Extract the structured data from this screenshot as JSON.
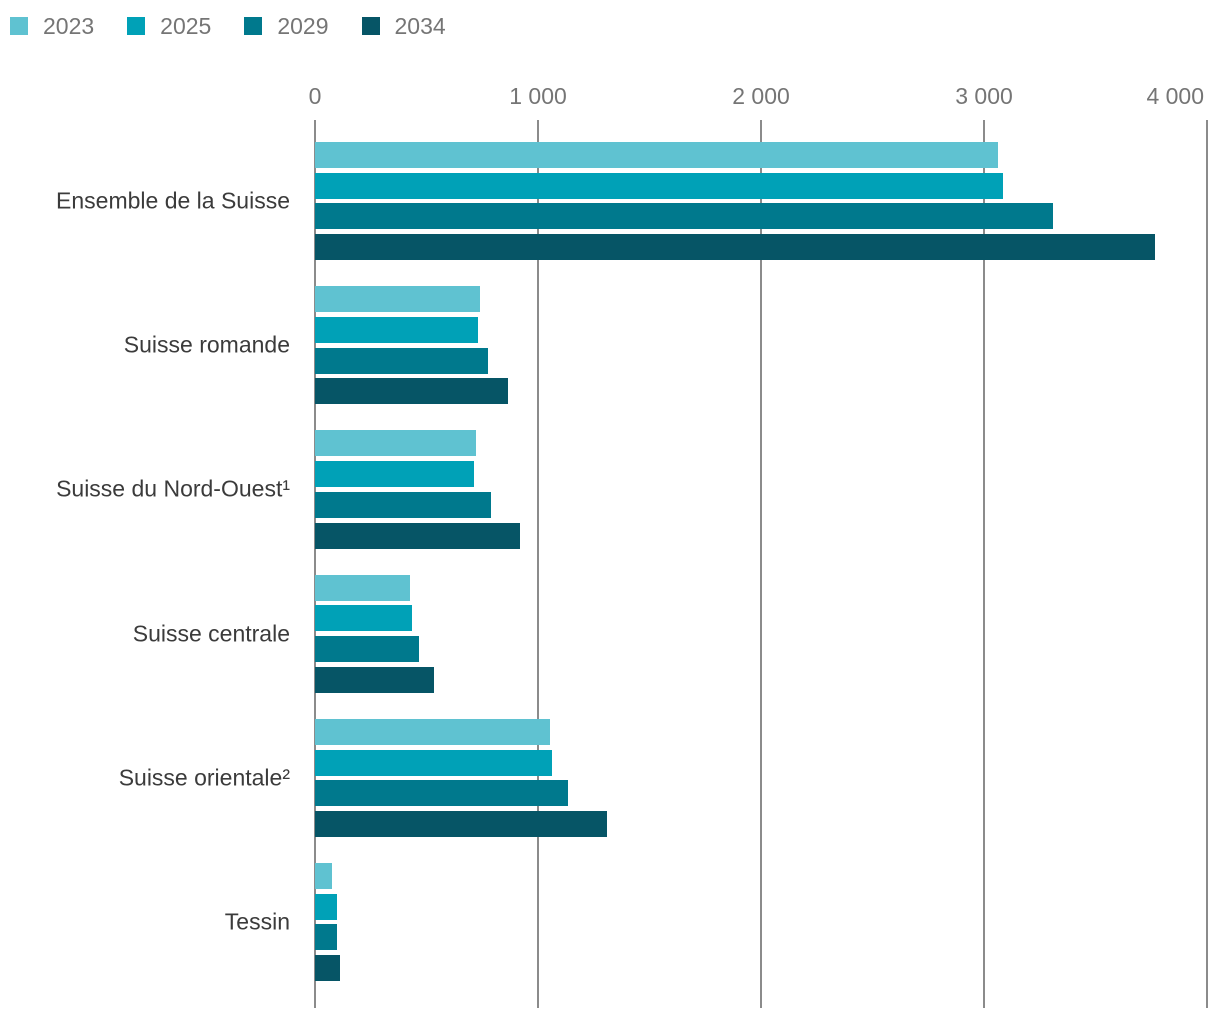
{
  "chart_data": {
    "type": "bar",
    "orientation": "horizontal",
    "title": "",
    "categories": [
      "Ensemble de la Suisse",
      "Suisse romande",
      "Suisse du Nord-Ouest¹",
      "Suisse centrale",
      "Suisse orientale²",
      "Tessin"
    ],
    "series": [
      {
        "name": "2023",
        "color": "#5fc2d1",
        "values": [
          3065,
          740,
          720,
          425,
          1055,
          75
        ]
      },
      {
        "name": "2025",
        "color": "#00a1b7",
        "values": [
          3085,
          730,
          715,
          435,
          1065,
          100
        ]
      },
      {
        "name": "2029",
        "color": "#00798d",
        "values": [
          3310,
          775,
          790,
          465,
          1135,
          100
        ]
      },
      {
        "name": "2034",
        "color": "#065566",
        "values": [
          3765,
          865,
          920,
          535,
          1310,
          110
        ]
      }
    ],
    "x_axis": {
      "position": "top",
      "min": 0,
      "max": 4000,
      "ticks": [
        0,
        1000,
        2000,
        3000,
        4000
      ],
      "tick_labels": [
        "0",
        "1 000",
        "2 000",
        "3 000",
        "4 000"
      ]
    },
    "legend": {
      "position": "top-left",
      "entries": [
        "2023",
        "2025",
        "2029",
        "2034"
      ]
    },
    "grid": true
  },
  "colors": {
    "background": "#ffffff",
    "gridline": "#8b8b8b",
    "axis_text": "#757575",
    "legend_text": "#757575",
    "category_text": "#3b3b3b"
  }
}
